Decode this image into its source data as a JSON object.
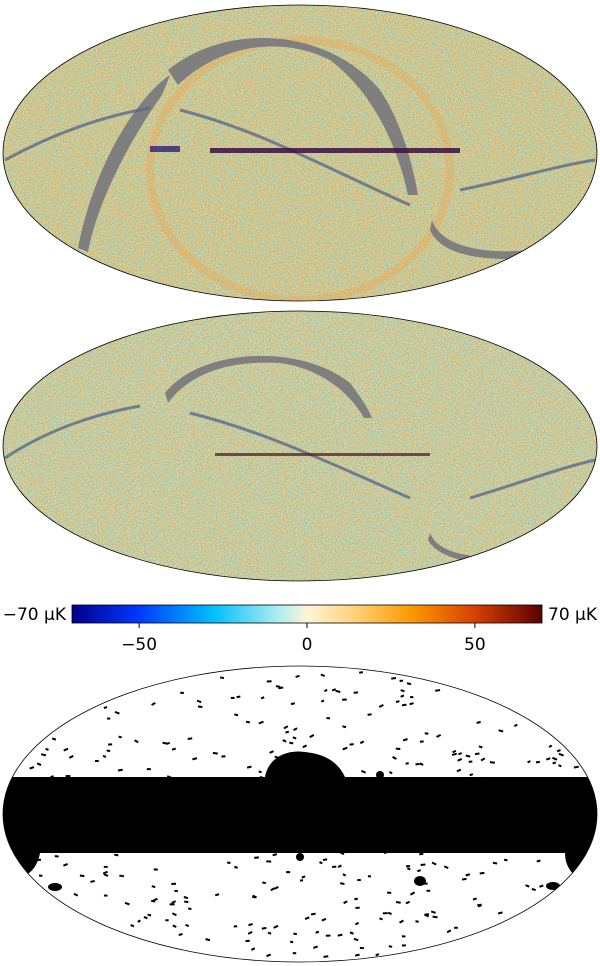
{
  "maps": [
    {
      "id": "residual-map-top"
    },
    {
      "id": "residual-map-middle"
    }
  ],
  "colorbar": {
    "min_label": "−70 µK",
    "max_label": "70 µK",
    "ticks": [
      "−50",
      "0",
      "50"
    ],
    "range": [
      -70,
      70
    ],
    "colormap": [
      "#00008b",
      "#0037ff",
      "#00bfff",
      "#aeeeee",
      "#fff4d8",
      "#ffd27a",
      "#ff9a00",
      "#d43f00",
      "#5a0000"
    ]
  },
  "mask": {
    "id": "galactic-mask",
    "masked_color": "#000000",
    "unmasked_color": "#ffffff"
  }
}
